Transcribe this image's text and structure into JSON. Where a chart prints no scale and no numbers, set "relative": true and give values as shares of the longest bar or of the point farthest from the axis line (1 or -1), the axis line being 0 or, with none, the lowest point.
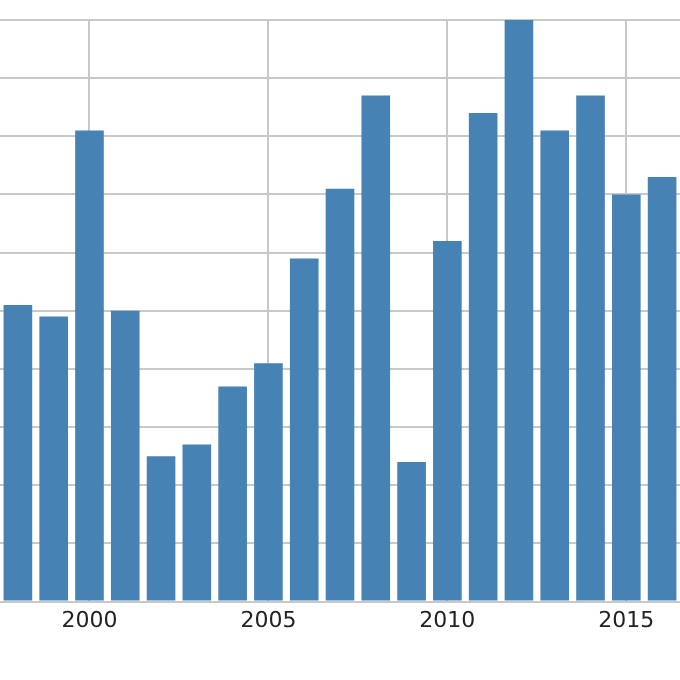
{
  "chart_data": {
    "type": "bar",
    "relative": true,
    "categories": [
      null,
      null,
      "2000",
      null,
      null,
      null,
      null,
      "2005",
      null,
      null,
      null,
      null,
      "2010",
      null,
      null,
      null,
      null,
      "2015",
      null
    ],
    "values": [
      0.51,
      0.49,
      0.81,
      0.5,
      0.25,
      0.27,
      0.37,
      0.41,
      0.59,
      0.71,
      0.87,
      0.24,
      0.62,
      0.84,
      1,
      0.81,
      0.87,
      0.7,
      0.73
    ],
    "color": "#4682b4",
    "grid": true
  }
}
